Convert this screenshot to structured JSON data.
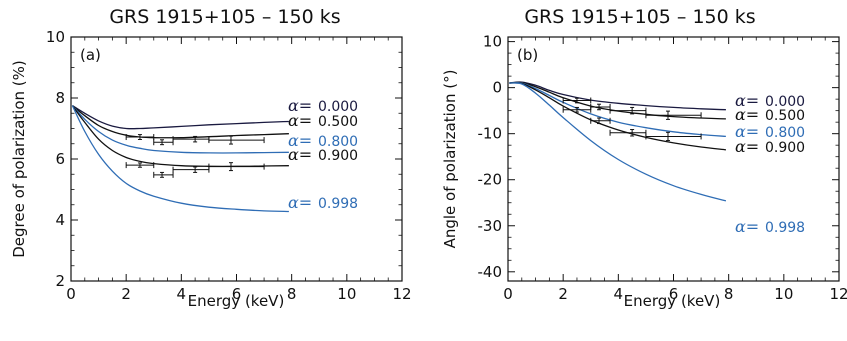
{
  "chart_data": [
    {
      "type": "line",
      "panel_label": "(a)",
      "title": "GRS 1915+105 – 150 ks",
      "xlabel": "Energy (keV)",
      "ylabel": "Degree of polarization (%)",
      "xlim": [
        0,
        12
      ],
      "ylim": [
        2,
        10
      ],
      "xticks": [
        0,
        2,
        4,
        6,
        8,
        10,
        12
      ],
      "yticks": [
        2,
        4,
        6,
        8,
        10
      ],
      "grid": false,
      "series": [
        {
          "name": "α= 0.000",
          "alpha_symbol": "α=",
          "alpha_value": "0.000",
          "color": "#1a1a40",
          "x": [
            0.05,
            0.5,
            1,
            1.5,
            2,
            2.5,
            3,
            4,
            5,
            6,
            7,
            7.9
          ],
          "y": [
            7.75,
            7.5,
            7.25,
            7.08,
            7.0,
            7.0,
            7.02,
            7.07,
            7.12,
            7.16,
            7.2,
            7.23
          ]
        },
        {
          "name": "α= 0.500",
          "alpha_symbol": "α=",
          "alpha_value": "0.500",
          "color": "#111111",
          "x": [
            0.05,
            0.5,
            1,
            1.5,
            2,
            2.5,
            3,
            4,
            5,
            6,
            7,
            7.9
          ],
          "y": [
            7.75,
            7.42,
            7.1,
            6.9,
            6.78,
            6.72,
            6.7,
            6.7,
            6.73,
            6.77,
            6.8,
            6.83
          ]
        },
        {
          "name": "α= 0.800",
          "alpha_symbol": "α=",
          "alpha_value": "0.800",
          "color": "#2f6db5",
          "x": [
            0.05,
            0.5,
            1,
            1.5,
            2,
            2.5,
            3,
            4,
            5,
            6,
            7,
            7.9
          ],
          "y": [
            7.75,
            7.3,
            6.9,
            6.62,
            6.45,
            6.35,
            6.28,
            6.22,
            6.2,
            6.2,
            6.21,
            6.22
          ]
        },
        {
          "name": "α= 0.900",
          "alpha_symbol": "α=",
          "alpha_value": "0.900",
          "color": "#111111",
          "x": [
            0.05,
            0.5,
            1,
            1.5,
            2,
            2.5,
            3,
            4,
            5,
            6,
            7,
            7.9
          ],
          "y": [
            7.75,
            7.2,
            6.65,
            6.28,
            6.05,
            5.92,
            5.85,
            5.78,
            5.76,
            5.76,
            5.77,
            5.78
          ]
        },
        {
          "name": "α= 0.998",
          "alpha_symbol": "α=",
          "alpha_value": "0.998",
          "color": "#2f6db5",
          "x": [
            0.05,
            0.5,
            1,
            1.5,
            2,
            2.5,
            3,
            4,
            5,
            6,
            7,
            7.9
          ],
          "y": [
            7.75,
            6.9,
            6.15,
            5.6,
            5.2,
            4.95,
            4.78,
            4.55,
            4.42,
            4.35,
            4.3,
            4.28
          ]
        }
      ],
      "data_points": [
        {
          "x": 2.5,
          "y": 6.72,
          "xerr": [
            2.0,
            3.0
          ],
          "yerr": 0.08
        },
        {
          "x": 3.3,
          "y": 6.55,
          "xerr": [
            3.0,
            3.7
          ],
          "yerr": 0.08
        },
        {
          "x": 4.5,
          "y": 6.65,
          "xerr": [
            3.7,
            5.0
          ],
          "yerr": 0.09
        },
        {
          "x": 5.8,
          "y": 6.62,
          "xerr": [
            5.0,
            7.0
          ],
          "yerr": 0.13
        },
        {
          "x": 2.5,
          "y": 5.8,
          "xerr": [
            2.0,
            3.0
          ],
          "yerr": 0.07
        },
        {
          "x": 3.3,
          "y": 5.48,
          "xerr": [
            3.0,
            3.7
          ],
          "yerr": 0.08
        },
        {
          "x": 4.5,
          "y": 5.65,
          "xerr": [
            3.7,
            5.0
          ],
          "yerr": 0.09
        },
        {
          "x": 5.8,
          "y": 5.75,
          "xerr": [
            5.0,
            7.0
          ],
          "yerr": 0.13
        }
      ]
    },
    {
      "type": "line",
      "panel_label": "(b)",
      "title": "GRS 1915+105 – 150 ks",
      "xlabel": "Energy (keV)",
      "ylabel": "Angle of polarization (°)",
      "xlim": [
        0,
        12
      ],
      "ylim": [
        -42,
        11
      ],
      "xticks": [
        0,
        2,
        4,
        6,
        8,
        10,
        12
      ],
      "yticks": [
        -40,
        -30,
        -20,
        -10,
        0,
        10
      ],
      "grid": false,
      "series": [
        {
          "name": "α= 0.000",
          "alpha_symbol": "α=",
          "alpha_value": "0.000",
          "color": "#1a1a40",
          "x": [
            0.05,
            0.5,
            1,
            1.5,
            2,
            3,
            4,
            5,
            6,
            7,
            7.9
          ],
          "y": [
            1.0,
            1.2,
            0.5,
            -0.6,
            -1.5,
            -2.7,
            -3.4,
            -3.9,
            -4.3,
            -4.6,
            -4.8
          ]
        },
        {
          "name": "α= 0.500",
          "alpha_symbol": "α=",
          "alpha_value": "0.500",
          "color": "#111111",
          "x": [
            0.05,
            0.5,
            1,
            1.5,
            2,
            3,
            4,
            5,
            6,
            7,
            7.9
          ],
          "y": [
            1.0,
            1.1,
            0.2,
            -1.0,
            -2.2,
            -4.0,
            -5.1,
            -5.8,
            -6.3,
            -6.6,
            -6.8
          ]
        },
        {
          "name": "α= 0.800",
          "alpha_symbol": "α=",
          "alpha_value": "0.800",
          "color": "#2f6db5",
          "x": [
            0.05,
            0.5,
            1,
            1.5,
            2,
            3,
            4,
            5,
            6,
            7,
            7.9
          ],
          "y": [
            1.0,
            1.0,
            -0.2,
            -1.7,
            -3.2,
            -5.7,
            -7.5,
            -8.7,
            -9.6,
            -10.2,
            -10.6
          ]
        },
        {
          "name": "α= 0.900",
          "alpha_symbol": "α=",
          "alpha_value": "0.900",
          "color": "#111111",
          "x": [
            0.05,
            0.5,
            1,
            1.5,
            2,
            3,
            4,
            5,
            6,
            7,
            7.9
          ],
          "y": [
            1.0,
            0.9,
            -0.5,
            -2.2,
            -4.0,
            -7.0,
            -9.2,
            -10.8,
            -12.0,
            -12.9,
            -13.5
          ]
        },
        {
          "name": "α= 0.998",
          "alpha_symbol": "α=",
          "alpha_value": "0.998",
          "color": "#2f6db5",
          "x": [
            0.05,
            0.5,
            1,
            1.5,
            2,
            3,
            4,
            5,
            6,
            7,
            7.9
          ],
          "y": [
            1.0,
            0.8,
            -1.2,
            -3.8,
            -6.5,
            -11.5,
            -15.6,
            -18.8,
            -21.3,
            -23.2,
            -24.6
          ]
        }
      ],
      "data_points": [
        {
          "x": 2.5,
          "y": -2.8,
          "xerr": [
            2.0,
            3.0
          ],
          "yerr": 0.5
        },
        {
          "x": 3.3,
          "y": -4.2,
          "xerr": [
            3.0,
            3.7
          ],
          "yerr": 0.6
        },
        {
          "x": 4.5,
          "y": -5.0,
          "xerr": [
            3.7,
            5.0
          ],
          "yerr": 0.7
        },
        {
          "x": 5.8,
          "y": -6.0,
          "xerr": [
            5.0,
            7.0
          ],
          "yerr": 0.9
        },
        {
          "x": 2.5,
          "y": -4.8,
          "xerr": [
            2.0,
            3.0
          ],
          "yerr": 0.5
        },
        {
          "x": 3.3,
          "y": -7.2,
          "xerr": [
            3.0,
            3.7
          ],
          "yerr": 0.6
        },
        {
          "x": 4.5,
          "y": -9.8,
          "xerr": [
            3.7,
            5.0
          ],
          "yerr": 0.7
        },
        {
          "x": 5.8,
          "y": -10.6,
          "xerr": [
            5.0,
            7.0
          ],
          "yerr": 0.9
        }
      ]
    }
  ]
}
